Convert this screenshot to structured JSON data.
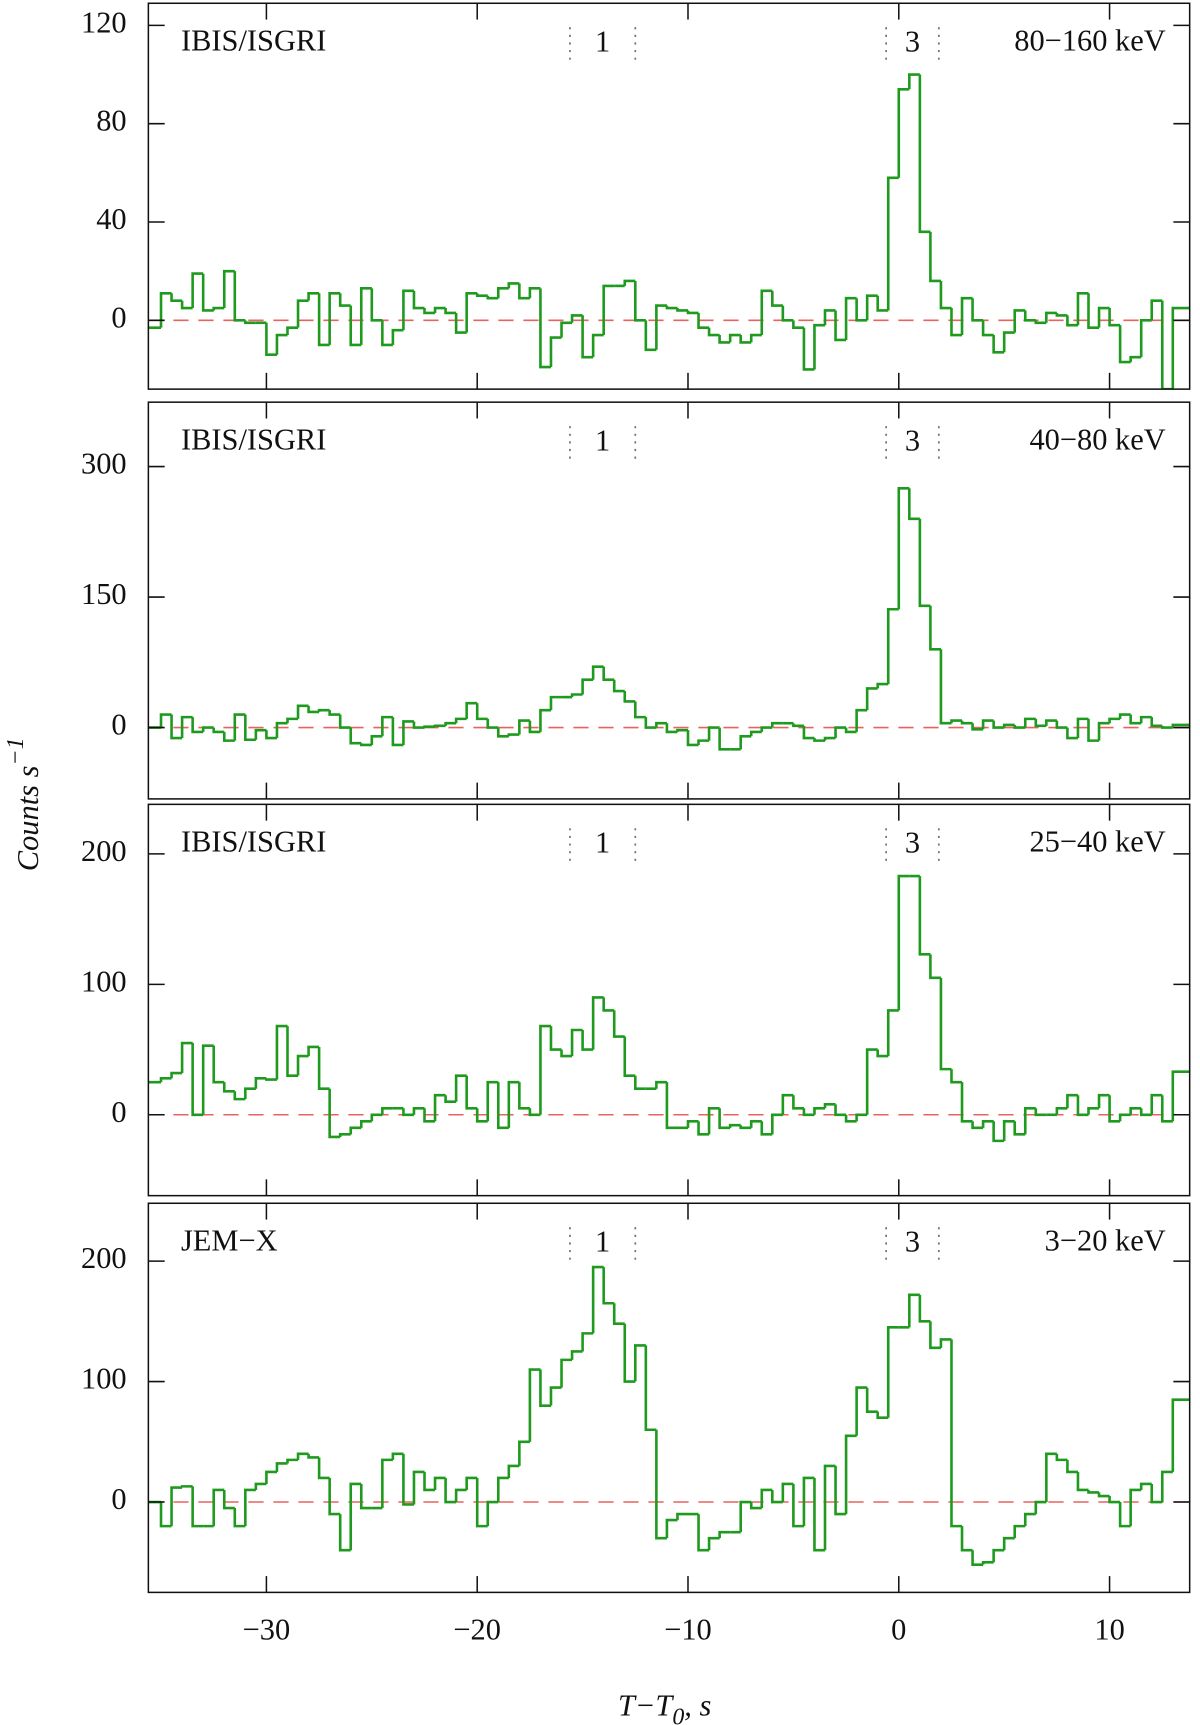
{
  "figure": {
    "ylabel": "Counts s",
    "ylabel_sup": "−1",
    "xlabel": "T−T",
    "xlabel_sub": "0",
    "xlabel_rest": ", s"
  },
  "chart_data": [
    {
      "type": "histogram",
      "instrument": "IBIS/ISGRI",
      "band": "80−160 keV",
      "color": "#1f9a1f",
      "bins": [
        -35.5,
        -35,
        -34.5,
        -34,
        -33.5,
        -33,
        -32.5,
        -32,
        -31.5,
        -31,
        -30.5,
        -30,
        -29.5,
        -29,
        -28.5,
        -28,
        -27.5,
        -27,
        -26.5,
        -26,
        -25.5,
        -25,
        -24.5,
        -24,
        -23.5,
        -23,
        -22.5,
        -22,
        -21.5,
        -21,
        -20.5,
        -20,
        -19.5,
        -19,
        -18.5,
        -18,
        -17.5,
        -17,
        -16.5,
        -16,
        -15.5,
        -15,
        -14.5,
        -14,
        -13.5,
        -13,
        -12.5,
        -12,
        -11.5,
        -11,
        -10.5,
        -10,
        -9.5,
        -9,
        -8.5,
        -8,
        -7.5,
        -7,
        -6.5,
        -6,
        -5.5,
        -5,
        -4.5,
        -4,
        -3.5,
        -3,
        -2.5,
        -2,
        -1.5,
        -1,
        -0.5,
        0,
        0.5,
        1,
        1.5,
        2,
        2.5,
        3,
        3.5,
        4,
        4.5,
        5,
        5.5,
        6,
        6.5,
        7,
        7.5,
        8,
        8.5,
        9,
        9.5,
        10,
        10.5,
        11,
        11.5,
        12,
        12.5,
        13,
        13.5
      ],
      "values": [
        -3,
        11,
        8,
        5,
        19,
        4,
        5,
        20,
        0,
        -1,
        -1,
        -14,
        -6,
        -3,
        8,
        11,
        -10,
        11,
        6,
        -10,
        13,
        0,
        -10,
        -4,
        12,
        5,
        3,
        5,
        3,
        -5,
        11,
        10,
        9,
        13,
        15,
        9,
        13,
        -19,
        -7,
        -1,
        2,
        -15,
        -6,
        14,
        14,
        16,
        0,
        -12,
        6,
        5,
        4,
        3,
        -3,
        -6,
        -9,
        -6,
        -9,
        -6,
        12,
        6,
        0,
        -3,
        -20,
        -2,
        4,
        -8,
        9,
        0,
        10,
        4,
        58,
        94,
        100,
        36,
        16,
        5,
        -6,
        9,
        0,
        -6,
        -13,
        -5,
        4,
        0,
        -1,
        3,
        2,
        -2,
        11,
        -3,
        5,
        -2,
        -17,
        -15,
        0,
        8,
        -28,
        5
      ],
      "xlim": [
        -35.6,
        13.8
      ],
      "xticks": [
        -30,
        -20,
        -10,
        0,
        10
      ],
      "ylim": [
        -28,
        129
      ],
      "yticks": [
        0,
        40,
        80,
        120
      ],
      "reference_line": {
        "y": 0,
        "color": "#e8635f",
        "style": "dashed"
      },
      "intervals": [
        {
          "label": "1",
          "x": [
            -15.6,
            -12.5
          ]
        },
        {
          "label": "3",
          "x": [
            -0.6,
            1.9
          ]
        }
      ]
    },
    {
      "type": "histogram",
      "instrument": "IBIS/ISGRI",
      "band": "40−80 keV",
      "color": "#1f9a1f",
      "bins": [
        -35.5,
        -35,
        -34.5,
        -34,
        -33.5,
        -33,
        -32.5,
        -32,
        -31.5,
        -31,
        -30.5,
        -30,
        -29.5,
        -29,
        -28.5,
        -28,
        -27.5,
        -27,
        -26.5,
        -26,
        -25.5,
        -25,
        -24.5,
        -24,
        -23.5,
        -23,
        -22.5,
        -22,
        -21.5,
        -21,
        -20.5,
        -20,
        -19.5,
        -19,
        -18.5,
        -18,
        -17.5,
        -17,
        -16.5,
        -16,
        -15.5,
        -15,
        -14.5,
        -14,
        -13.5,
        -13,
        -12.5,
        -12,
        -11.5,
        -11,
        -10.5,
        -10,
        -9.5,
        -9,
        -8.5,
        -8,
        -7.5,
        -7,
        -6.5,
        -6,
        -5.5,
        -5,
        -4.5,
        -4,
        -3.5,
        -3,
        -2.5,
        -2,
        -1.5,
        -1,
        -0.5,
        0,
        0.5,
        1,
        1.5,
        2,
        2.5,
        3,
        3.5,
        4,
        4.5,
        5,
        5.5,
        6,
        6.5,
        7,
        7.5,
        8,
        8.5,
        9,
        9.5,
        10,
        10.5,
        11,
        11.5,
        12,
        12.5,
        13,
        13.5
      ],
      "values": [
        0,
        15,
        -12,
        12,
        -5,
        0,
        -5,
        -15,
        15,
        -14,
        -3,
        -12,
        5,
        10,
        25,
        18,
        20,
        15,
        0,
        -18,
        -20,
        -10,
        12,
        -20,
        7,
        0,
        1,
        2,
        5,
        10,
        28,
        10,
        0,
        -10,
        -8,
        8,
        -5,
        20,
        35,
        35,
        38,
        55,
        70,
        55,
        42,
        30,
        12,
        0,
        5,
        -5,
        -3,
        -20,
        -15,
        0,
        -25,
        -25,
        -10,
        -5,
        0,
        5,
        5,
        2,
        -12,
        -15,
        -12,
        0,
        -5,
        20,
        45,
        50,
        136,
        275,
        240,
        140,
        90,
        5,
        8,
        5,
        -2,
        8,
        0,
        3,
        0,
        10,
        2,
        8,
        0,
        -12,
        10,
        -15,
        5,
        10,
        15,
        5,
        12,
        2,
        0,
        3
      ],
      "xlim": [
        -35.6,
        13.8
      ],
      "xticks": [
        -30,
        -20,
        -10,
        0,
        10
      ],
      "ylim": [
        -82,
        374
      ],
      "yticks": [
        0,
        150,
        300
      ],
      "reference_line": {
        "y": 0,
        "color": "#e8635f",
        "style": "dashed"
      },
      "intervals": [
        {
          "label": "1",
          "x": [
            -15.6,
            -12.5
          ]
        },
        {
          "label": "3",
          "x": [
            -0.6,
            1.9
          ]
        }
      ]
    },
    {
      "type": "histogram",
      "instrument": "IBIS/ISGRI",
      "band": "25−40 keV",
      "color": "#1f9a1f",
      "bins": [
        -35.5,
        -35,
        -34.5,
        -34,
        -33.5,
        -33,
        -32.5,
        -32,
        -31.5,
        -31,
        -30.5,
        -30,
        -29.5,
        -29,
        -28.5,
        -28,
        -27.5,
        -27,
        -26.5,
        -26,
        -25.5,
        -25,
        -24.5,
        -24,
        -23.5,
        -23,
        -22.5,
        -22,
        -21.5,
        -21,
        -20.5,
        -20,
        -19.5,
        -19,
        -18.5,
        -18,
        -17.5,
        -17,
        -16.5,
        -16,
        -15.5,
        -15,
        -14.5,
        -14,
        -13.5,
        -13,
        -12.5,
        -12,
        -11.5,
        -11,
        -10.5,
        -10,
        -9.5,
        -9,
        -8.5,
        -8,
        -7.5,
        -7,
        -6.5,
        -6,
        -5.5,
        -5,
        -4.5,
        -4,
        -3.5,
        -3,
        -2.5,
        -2,
        -1.5,
        -1,
        -0.5,
        0,
        0.5,
        1,
        1.5,
        2,
        2.5,
        3,
        3.5,
        4,
        4.5,
        5,
        5.5,
        6,
        6.5,
        7,
        7.5,
        8,
        8.5,
        9,
        9.5,
        10,
        10.5,
        11,
        11.5,
        12,
        12.5,
        13,
        13.5
      ],
      "values": [
        25,
        28,
        32,
        55,
        0,
        53,
        25,
        18,
        12,
        20,
        28,
        27,
        68,
        30,
        45,
        52,
        20,
        -17,
        -15,
        -10,
        -5,
        0,
        5,
        5,
        0,
        5,
        -5,
        15,
        10,
        30,
        5,
        -5,
        25,
        -10,
        25,
        5,
        0,
        68,
        50,
        45,
        65,
        50,
        90,
        80,
        60,
        30,
        20,
        20,
        25,
        -10,
        -10,
        -5,
        -15,
        5,
        -10,
        -8,
        -10,
        -5,
        -15,
        0,
        15,
        5,
        0,
        5,
        8,
        0,
        -5,
        0,
        50,
        45,
        80,
        183,
        183,
        123,
        105,
        35,
        25,
        -5,
        -10,
        -5,
        -20,
        -5,
        -15,
        5,
        0,
        0,
        5,
        15,
        0,
        5,
        15,
        -5,
        0,
        5,
        0,
        15,
        -5,
        33
      ],
      "xlim": [
        -35.6,
        13.8
      ],
      "xticks": [
        -30,
        -20,
        -10,
        0,
        10
      ],
      "ylim": [
        -62,
        238
      ],
      "yticks": [
        0,
        100,
        200
      ],
      "reference_line": {
        "y": 0,
        "color": "#e8635f",
        "style": "dashed"
      },
      "intervals": [
        {
          "label": "1",
          "x": [
            -15.6,
            -12.5
          ]
        },
        {
          "label": "3",
          "x": [
            -0.6,
            1.9
          ]
        }
      ]
    },
    {
      "type": "histogram",
      "instrument": "JEM−X",
      "band": "3−20 keV",
      "color": "#1f9a1f",
      "bins": [
        -35.5,
        -35,
        -34.5,
        -34,
        -33.5,
        -33,
        -32.5,
        -32,
        -31.5,
        -31,
        -30.5,
        -30,
        -29.5,
        -29,
        -28.5,
        -28,
        -27.5,
        -27,
        -26.5,
        -26,
        -25.5,
        -25,
        -24.5,
        -24,
        -23.5,
        -23,
        -22.5,
        -22,
        -21.5,
        -21,
        -20.5,
        -20,
        -19.5,
        -19,
        -18.5,
        -18,
        -17.5,
        -17,
        -16.5,
        -16,
        -15.5,
        -15,
        -14.5,
        -14,
        -13.5,
        -13,
        -12.5,
        -12,
        -11.5,
        -11,
        -10.5,
        -10,
        -9.5,
        -9,
        -8.5,
        -8,
        -7.5,
        -7,
        -6.5,
        -6,
        -5.5,
        -5,
        -4.5,
        -4,
        -3.5,
        -3,
        -2.5,
        -2,
        -1.5,
        -1,
        -0.5,
        0,
        0.5,
        1,
        1.5,
        2,
        2.5,
        3,
        3.5,
        4,
        4.5,
        5,
        5.5,
        6,
        6.5,
        7,
        7.5,
        8,
        8.5,
        9,
        9.5,
        10,
        10.5,
        11,
        11.5,
        12,
        12.5,
        13,
        13.5
      ],
      "values": [
        0,
        -20,
        12,
        13,
        -20,
        -20,
        10,
        -5,
        -20,
        10,
        15,
        25,
        32,
        35,
        40,
        37,
        20,
        -10,
        -40,
        15,
        -5,
        -5,
        35,
        40,
        -2,
        25,
        10,
        20,
        0,
        10,
        20,
        -20,
        0,
        20,
        30,
        50,
        110,
        80,
        95,
        118,
        125,
        140,
        195,
        165,
        148,
        100,
        130,
        60,
        -30,
        -15,
        -10,
        -10,
        -40,
        -30,
        -25,
        -25,
        0,
        -5,
        10,
        0,
        15,
        -20,
        20,
        -40,
        30,
        -10,
        55,
        95,
        75,
        70,
        145,
        145,
        172,
        150,
        128,
        135,
        -20,
        -40,
        -52,
        -50,
        -40,
        -30,
        -20,
        -10,
        0,
        40,
        35,
        25,
        10,
        8,
        5,
        0,
        -20,
        10,
        15,
        0,
        25,
        85
      ],
      "xlim": [
        -35.6,
        13.8
      ],
      "xticks": [
        -30,
        -20,
        -10,
        0,
        10
      ],
      "ylim": [
        -75,
        248
      ],
      "yticks": [
        0,
        100,
        200
      ],
      "reference_line": {
        "y": 0,
        "color": "#e8635f",
        "style": "dashed"
      },
      "intervals": [
        {
          "label": "1",
          "x": [
            -15.6,
            -12.5
          ]
        },
        {
          "label": "3",
          "x": [
            -0.6,
            1.9
          ]
        }
      ]
    }
  ]
}
